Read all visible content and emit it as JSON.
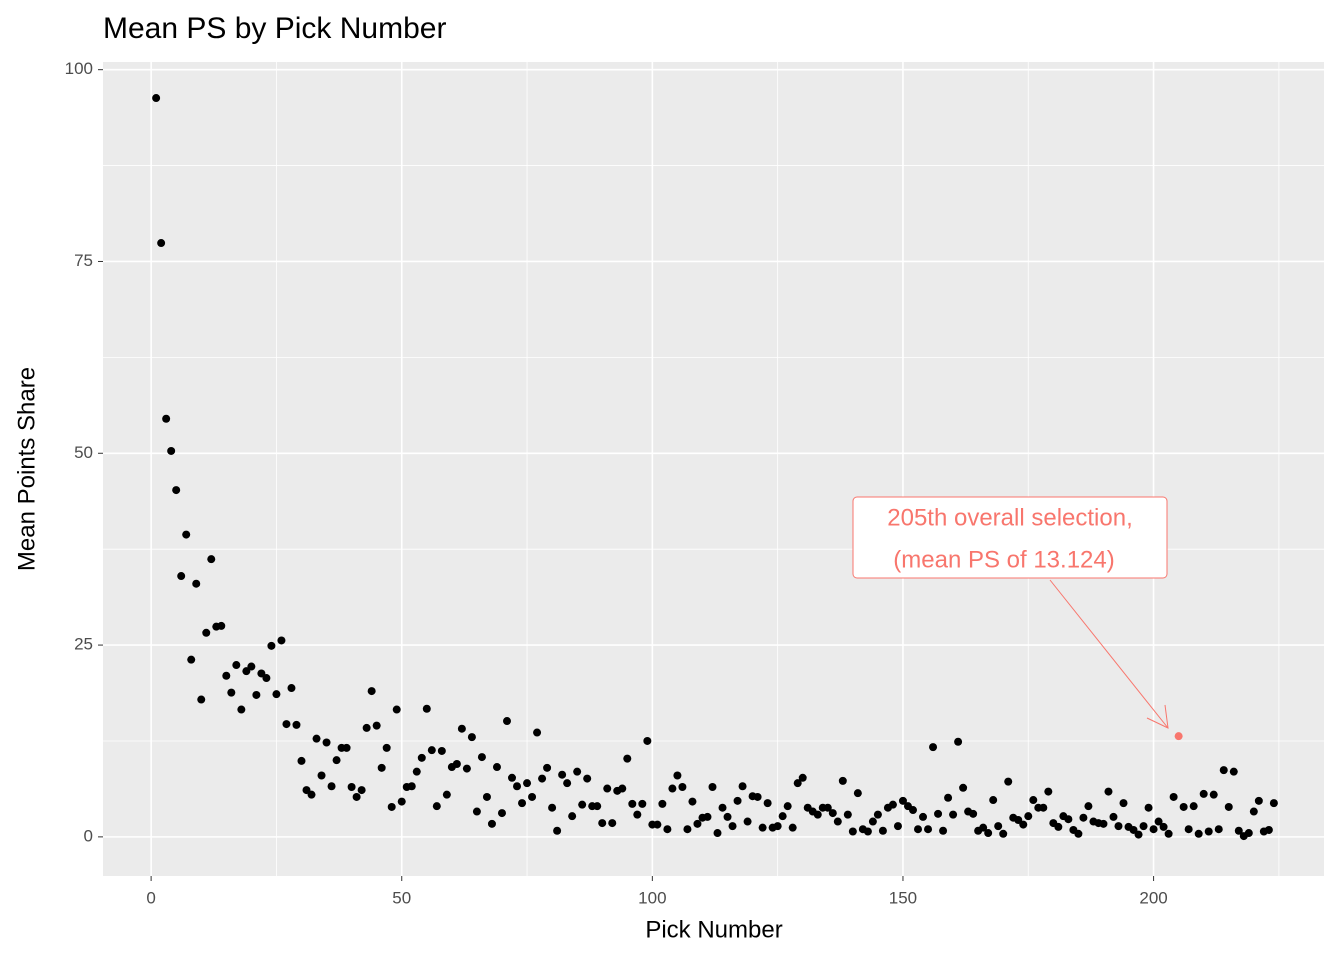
{
  "chart_data": {
    "type": "scatter",
    "title": "Mean PS by Pick Number",
    "x_label": "Pick Number",
    "y_label": "Mean Points Share",
    "xlim": [
      -9.6,
      234
    ],
    "ylim": [
      -5.1,
      101
    ],
    "xticks": [
      0,
      50,
      100,
      150,
      200
    ],
    "yticks": [
      0,
      25,
      50,
      75,
      100
    ],
    "grid": true,
    "minor_grid": true,
    "series": [
      {
        "color": "#000000",
        "x": [
          1,
          2,
          3,
          4,
          5,
          6,
          7,
          8,
          9,
          10,
          11,
          12,
          13,
          14,
          15,
          16,
          17,
          18,
          19,
          20,
          21,
          22,
          23,
          24,
          25,
          26,
          27,
          28,
          29,
          30,
          31,
          32,
          33,
          34,
          35,
          36,
          37,
          38,
          39,
          40,
          41,
          42,
          43,
          44,
          45,
          46,
          47,
          48,
          49,
          50,
          51,
          52,
          53,
          54,
          55,
          56,
          57,
          58,
          59,
          60,
          61,
          62,
          63,
          64,
          65,
          66,
          67,
          68,
          69,
          70,
          71,
          72,
          73,
          74,
          75,
          76,
          77,
          78,
          79,
          80,
          81,
          82,
          83,
          84,
          85,
          86,
          87,
          88,
          89,
          90,
          91,
          92,
          93,
          94,
          95,
          96,
          97,
          98,
          99,
          100,
          101,
          102,
          103,
          104,
          105,
          106,
          107,
          108,
          109,
          110,
          111,
          112,
          113,
          114,
          115,
          116,
          117,
          118,
          119,
          120,
          121,
          122,
          123,
          124,
          125,
          126,
          127,
          128,
          129,
          130,
          131,
          132,
          133,
          134,
          135,
          136,
          137,
          138,
          139,
          140,
          141,
          142,
          143,
          144,
          145,
          146,
          147,
          148,
          149,
          150,
          151,
          152,
          153,
          154,
          155,
          156,
          157,
          158,
          159,
          160,
          161,
          162,
          163,
          164,
          165,
          166,
          167,
          168,
          169,
          170,
          171,
          172,
          173,
          174,
          175,
          176,
          177,
          178,
          179,
          180,
          181,
          182,
          183,
          184,
          185,
          186,
          187,
          188,
          189,
          190,
          191,
          192,
          193,
          194,
          195,
          196,
          197,
          198,
          199,
          200,
          201,
          202,
          203,
          204,
          206,
          207,
          208,
          209,
          210,
          211,
          212,
          213,
          214,
          215,
          216,
          217,
          218,
          219,
          220,
          221,
          222,
          223,
          224
        ],
        "values": [
          96.3,
          77.4,
          54.5,
          50.3,
          45.2,
          34.0,
          39.4,
          23.1,
          33.0,
          17.9,
          26.6,
          36.2,
          27.4,
          27.5,
          21.0,
          18.8,
          22.4,
          16.6,
          21.6,
          22.2,
          18.5,
          21.3,
          20.7,
          24.9,
          18.6,
          25.6,
          14.7,
          19.4,
          14.6,
          9.9,
          6.1,
          5.5,
          12.8,
          8.0,
          12.3,
          6.6,
          10.0,
          11.6,
          11.6,
          6.5,
          5.2,
          6.1,
          14.2,
          19.0,
          14.5,
          9.0,
          11.6,
          3.9,
          16.6,
          4.6,
          6.5,
          6.6,
          8.5,
          10.3,
          16.7,
          11.3,
          4.0,
          11.2,
          5.5,
          9.1,
          9.5,
          14.1,
          8.9,
          13.0,
          3.3,
          10.4,
          5.2,
          1.7,
          9.1,
          3.1,
          15.1,
          7.7,
          6.6,
          4.4,
          7.0,
          5.2,
          13.6,
          7.6,
          9.0,
          3.8,
          0.8,
          8.1,
          7.0,
          2.7,
          8.5,
          4.2,
          7.6,
          4.0,
          4.0,
          1.8,
          6.3,
          1.8,
          6.0,
          6.3,
          10.2,
          4.3,
          2.9,
          4.3,
          12.5,
          1.6,
          1.6,
          4.3,
          1.0,
          6.3,
          8.0,
          6.5,
          1.0,
          4.6,
          1.7,
          2.5,
          2.6,
          6.5,
          0.5,
          3.8,
          2.6,
          1.4,
          4.7,
          6.6,
          2.0,
          5.3,
          5.2,
          1.2,
          4.4,
          1.2,
          1.4,
          2.7,
          4.0,
          1.2,
          7.0,
          7.7,
          3.8,
          3.3,
          2.9,
          3.8,
          3.8,
          3.1,
          2.0,
          7.3,
          2.9,
          0.7,
          5.7,
          1.0,
          0.7,
          2.0,
          2.9,
          0.8,
          3.8,
          4.2,
          1.4,
          4.7,
          4.0,
          3.5,
          1.0,
          2.6,
          1.0,
          11.7,
          3.0,
          0.8,
          5.1,
          2.9,
          12.4,
          6.4,
          3.3,
          3.0,
          0.8,
          1.2,
          0.5,
          4.8,
          1.4,
          0.4,
          7.2,
          2.5,
          2.2,
          1.6,
          2.7,
          4.8,
          3.8,
          3.8,
          5.9,
          1.8,
          1.3,
          2.7,
          2.3,
          0.9,
          0.4,
          2.5,
          4.0,
          2.0,
          1.8,
          1.7,
          5.9,
          2.6,
          1.4,
          4.4,
          1.3,
          0.9,
          0.3,
          1.4,
          3.8,
          1.0,
          2.0,
          1.3,
          0.4,
          5.2,
          3.9,
          1.0,
          4.0,
          0.4,
          5.6,
          0.7,
          5.5,
          1.0,
          8.7,
          3.9,
          8.5,
          0.8,
          0.1,
          0.5,
          3.3,
          4.7,
          0.7,
          0.9,
          4.4
        ]
      },
      {
        "color": "#F8766D",
        "x": [
          205
        ],
        "values": [
          13.124
        ]
      }
    ],
    "annotation": {
      "lines": [
        "205th overall selection,",
        "(mean PS of 13.124)"
      ],
      "color": "#F8766D"
    }
  }
}
